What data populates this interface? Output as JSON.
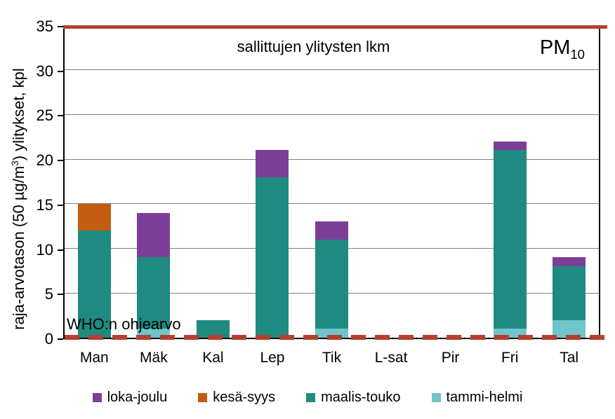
{
  "chart_data": {
    "type": "bar",
    "stacked": true,
    "title": "sallittujen ylitysten lkm",
    "corner_label": {
      "text": "PM",
      "subscript": "10"
    },
    "ylabel_parts": {
      "prefix": "raja-arvotason (50 µg/m",
      "sup": "3",
      "suffix": ") ylitykset, kpl"
    },
    "categories": [
      "Man",
      "Mäk",
      "Kal",
      "Lep",
      "Tik",
      "L-sat",
      "Pir",
      "Fri",
      "Tal"
    ],
    "series": [
      {
        "name": "tammi-helmi",
        "color": "#6fc5c9",
        "values": [
          0,
          1,
          0,
          0,
          1,
          0,
          0,
          1,
          2
        ]
      },
      {
        "name": "maalis-touko",
        "color": "#1f8a80",
        "values": [
          12,
          8,
          2,
          18,
          10,
          0,
          0,
          20,
          6
        ]
      },
      {
        "name": "kesä-syys",
        "color": "#c25d11",
        "values": [
          3,
          0,
          0,
          0,
          0,
          0,
          0,
          0,
          0
        ]
      },
      {
        "name": "loka-joulu",
        "color": "#7d3e98",
        "values": [
          0,
          5,
          0,
          3,
          2,
          0,
          0,
          1,
          1
        ]
      }
    ],
    "totals": [
      15,
      14,
      2,
      21,
      13,
      0,
      0,
      22,
      9
    ],
    "legend_order": [
      "loka-joulu",
      "kesä-syys",
      "maalis-touko",
      "tammi-helmi"
    ],
    "ylim": [
      0,
      35
    ],
    "yticks": [
      35,
      30,
      25,
      20,
      15,
      10,
      5,
      0
    ],
    "grid": true,
    "legend_position": "bottom",
    "reference_lines": [
      {
        "value": 35,
        "style": "solid",
        "color": "#b5402f",
        "label": "sallittujen ylitysten lkm"
      },
      {
        "value": 0.3,
        "style": "dashed",
        "color": "#b5402f",
        "label": "WHO:n ohjearvo"
      }
    ]
  }
}
